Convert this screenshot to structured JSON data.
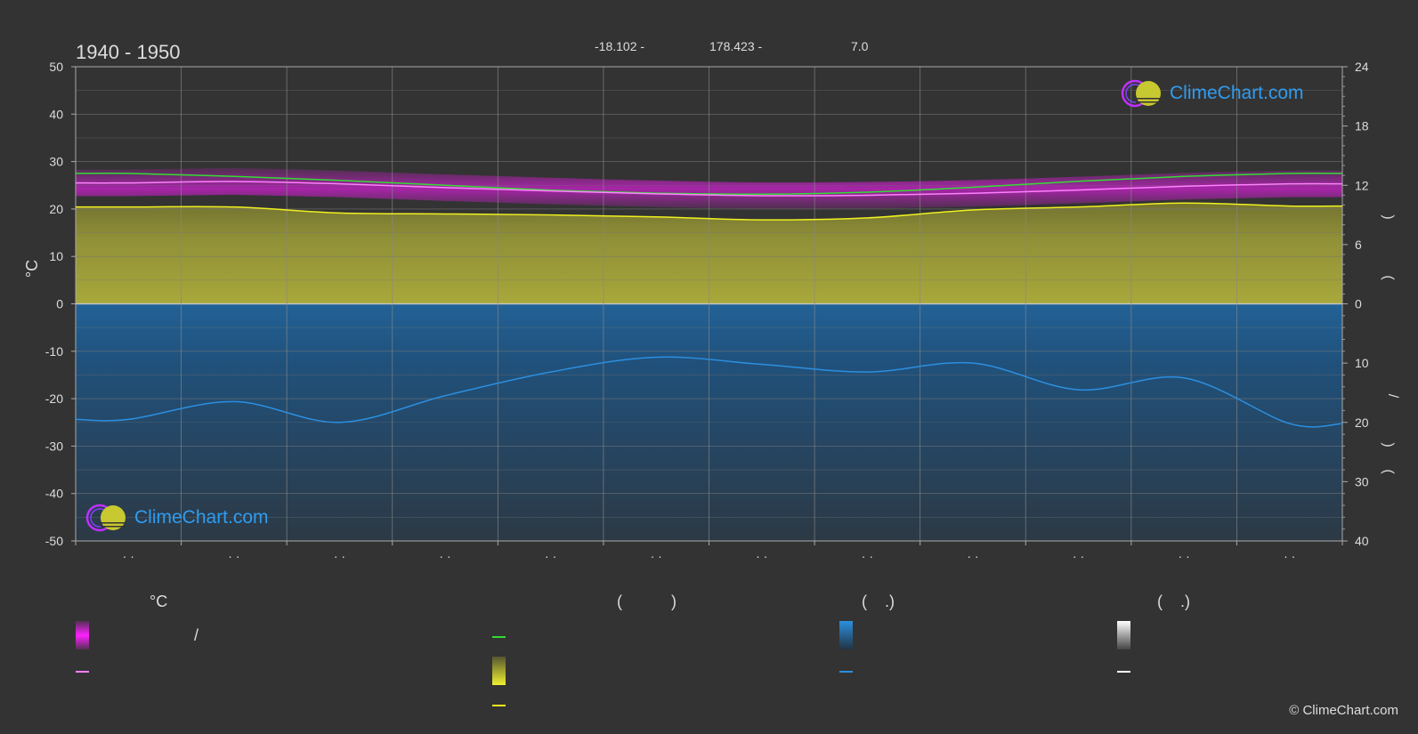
{
  "header": {
    "period": "1940 - 1950",
    "lat": "-18.102 -",
    "lon": "178.423 -",
    "elev": "7.0"
  },
  "axes": {
    "left_unit": "°C",
    "left_ticks": [
      "50",
      "40",
      "30",
      "20",
      "10",
      "0",
      "-10",
      "-20",
      "-30",
      "-40",
      "-50"
    ],
    "right_top_ticks": [
      "24",
      "18",
      "12",
      "6",
      "0"
    ],
    "right_bottom_ticks": [
      "10",
      "20",
      "30",
      "40"
    ],
    "right_labels": [
      ")",
      "(",
      "/",
      ")",
      "(",
      "."
    ],
    "month_labels": [
      "· ·",
      "· ·",
      "· ·",
      "· ·",
      "· ·",
      "· ·",
      "· ·",
      "· ·",
      "· ·",
      "· ·",
      "· ·",
      "· ·"
    ]
  },
  "legend": {
    "col1_head": "°C",
    "col2_head": "(           )",
    "col3_head": "(    .)",
    "col4_head": "(    .)",
    "slash": "/"
  },
  "logo": {
    "text": "ClimeChart.com"
  },
  "copyright": "© ClimeChart.com",
  "colors": {
    "background": "#333333",
    "temp_band": "#d020d0",
    "temp_line": "#ff80ff",
    "daylight": "#33dd33",
    "sunshine_fill": "#b8b830",
    "sunshine_line": "#f0f020",
    "precip_fill": "#1f6aa8",
    "precip_line": "#2b8fe0",
    "snow": "#ffffff"
  },
  "chart_data": {
    "type": "area",
    "title": "1940 - 1950",
    "ylabel": "°C",
    "ylim_left": [
      -50,
      50
    ],
    "ylim_right_top": [
      0,
      24
    ],
    "ylim_right_bottom": [
      0,
      40
    ],
    "x_months": 12,
    "grid": true,
    "series": [
      {
        "key": "daylight_hours",
        "axis": "right_top",
        "color": "#33dd33",
        "values": [
          13.2,
          12.9,
          12.5,
          12.0,
          11.5,
          11.2,
          11.1,
          11.3,
          11.8,
          12.4,
          12.9,
          13.2
        ]
      },
      {
        "key": "mean_temp",
        "axis": "left",
        "color": "#ff80ff",
        "values": [
          25.5,
          25.8,
          25.3,
          24.5,
          23.8,
          23.2,
          22.8,
          22.9,
          23.3,
          24.0,
          24.8,
          25.3
        ]
      },
      {
        "key": "sunshine_hours",
        "axis": "right_top",
        "color": "#f0f020",
        "values": [
          9.8,
          9.8,
          9.2,
          9.1,
          9.0,
          8.8,
          8.5,
          8.7,
          9.5,
          9.8,
          10.2,
          9.9
        ]
      },
      {
        "key": "precipitation_mm_day",
        "axis": "right_bottom",
        "color": "#2b8fe0",
        "values": [
          19.5,
          16.5,
          20.0,
          15.5,
          11.5,
          9.0,
          10.2,
          11.5,
          10.0,
          14.5,
          12.5,
          20.2
        ]
      }
    ]
  }
}
